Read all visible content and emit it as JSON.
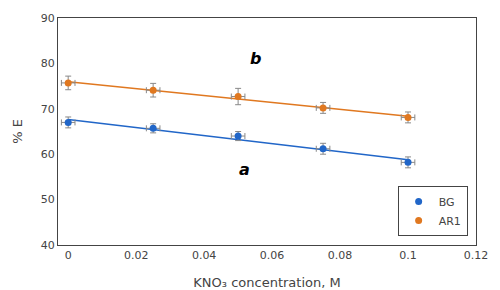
{
  "chart_data": {
    "type": "scatter",
    "xlabel": "KNO₃ concentration, M",
    "ylabel": "% E",
    "xlim": [
      -0.003,
      0.12
    ],
    "ylim": [
      40,
      90
    ],
    "xticks": [
      0,
      0.02,
      0.04,
      0.06,
      0.08,
      0.1,
      0.12
    ],
    "yticks": [
      40,
      50,
      60,
      70,
      80,
      90
    ],
    "grid": false,
    "legend": "lower right",
    "series": [
      {
        "type": "line",
        "color": "#2166c8",
        "x": [
          0,
          0.1
        ],
        "values": [
          67.64,
          58.8
        ]
      },
      {
        "type": "line",
        "color": "#e07820",
        "x": [
          0,
          0.1
        ],
        "values": [
          75.98,
          68.34
        ]
      },
      {
        "type": "scatter",
        "name": "BG",
        "color": "#2166c8",
        "marker": "circle",
        "x": [
          0,
          0.025,
          0.05,
          0.075,
          0.1
        ],
        "values": [
          67.0,
          65.7,
          64.0,
          61.2,
          58.2
        ],
        "xerr": [
          0.002,
          0.002,
          0.002,
          0.002,
          0.002
        ],
        "yerr": [
          1.2,
          1.0,
          1.0,
          1.2,
          1.2
        ]
      },
      {
        "type": "scatter",
        "name": "AR1",
        "color": "#e07820",
        "marker": "circle",
        "x": [
          0,
          0.025,
          0.05,
          0.075,
          0.1
        ],
        "values": [
          75.7,
          74.1,
          72.7,
          70.2,
          68.1
        ],
        "xerr": [
          0.002,
          0.002,
          0.002,
          0.002,
          0.002
        ],
        "yerr": [
          1.5,
          1.5,
          1.8,
          1.2,
          1.2
        ]
      }
    ],
    "annotations": [
      {
        "text": "a",
        "x": 0.052,
        "y": 54.0
      },
      {
        "text": "b",
        "x": 0.055,
        "y": 78.5
      }
    ]
  }
}
